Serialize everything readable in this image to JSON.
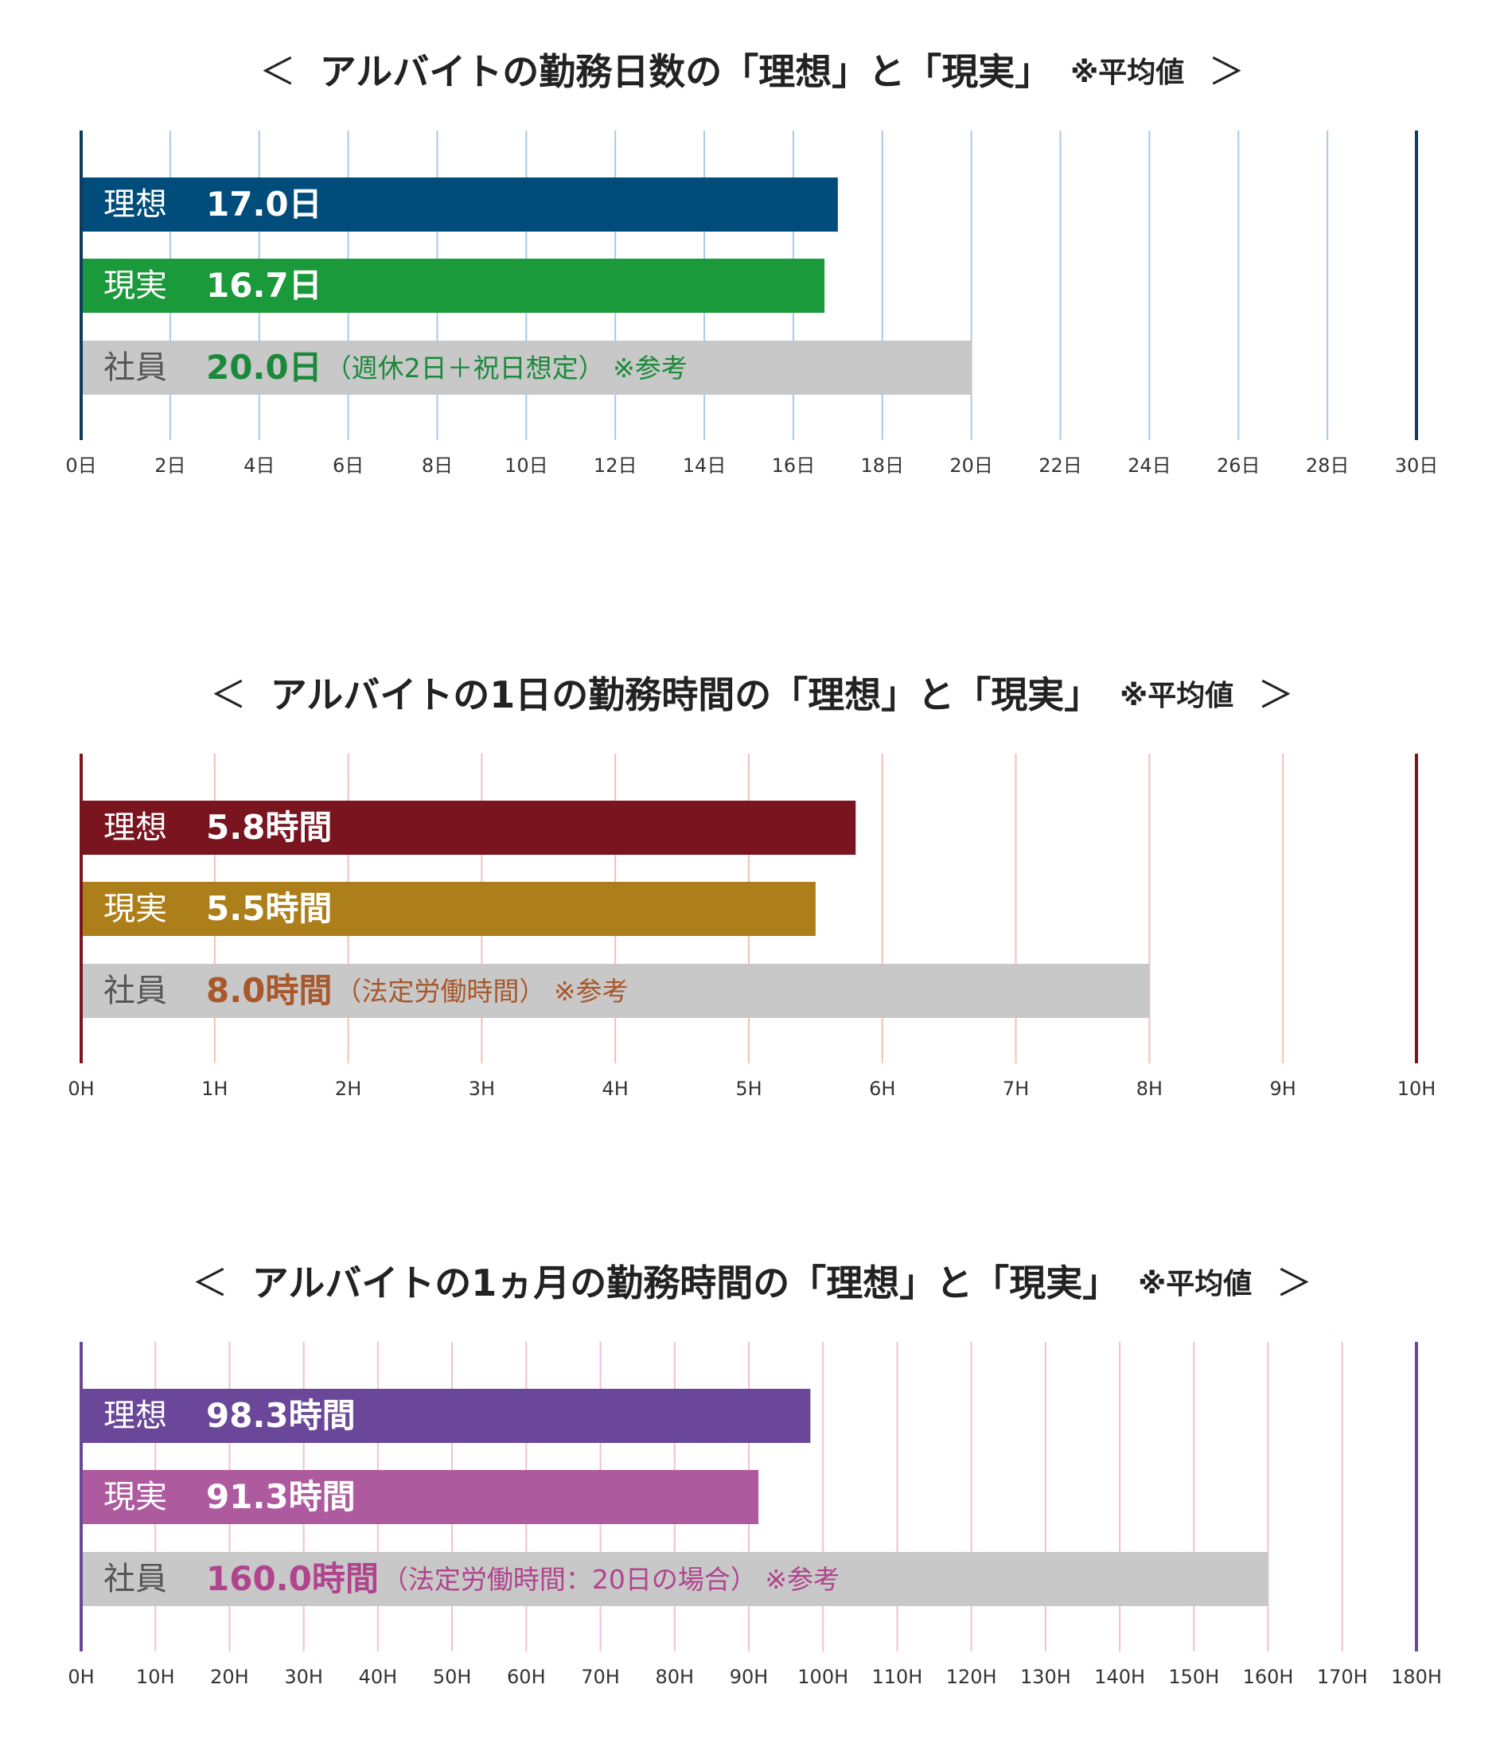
{
  "chart_data": [
    {
      "type": "bar",
      "orientation": "horizontal",
      "title_open": "＜",
      "title": "アルバイトの勤務日数の「理想」と「現実」",
      "title_note": "※平均値",
      "title_close": "＞",
      "categories": [
        "理想",
        "現実",
        "社員"
      ],
      "values": [
        17.0,
        16.7,
        20.0
      ],
      "value_labels": [
        "17.0日",
        "16.7日",
        "20.0日"
      ],
      "notes": [
        null,
        null,
        "（週休2日＋祝日想定） ※参考"
      ],
      "colors": [
        "#004c7a",
        "#1a9a3a",
        "#c8c8c8"
      ],
      "label_colors": [
        "#ffffff",
        "#ffffff",
        "#1a8a3a"
      ],
      "category_colors": [
        "#ffffff",
        "#ffffff",
        "#555555"
      ],
      "grid_color": "#a9c8e8",
      "axis_color": "#0d3c5e",
      "xlim": [
        0,
        30
      ],
      "xticks": [
        {
          "value": 0,
          "label": "0日"
        },
        {
          "value": 2,
          "label": "2日"
        },
        {
          "value": 4,
          "label": "4日"
        },
        {
          "value": 6,
          "label": "6日"
        },
        {
          "value": 8,
          "label": "8日"
        },
        {
          "value": 10,
          "label": "10日"
        },
        {
          "value": 12,
          "label": "12日"
        },
        {
          "value": 14,
          "label": "14日"
        },
        {
          "value": 16,
          "label": "16日"
        },
        {
          "value": 18,
          "label": "18日"
        },
        {
          "value": 20,
          "label": "20日"
        },
        {
          "value": 22,
          "label": "22日"
        },
        {
          "value": 24,
          "label": "24日"
        },
        {
          "value": 26,
          "label": "26日"
        },
        {
          "value": 28,
          "label": "28日"
        },
        {
          "value": 30,
          "label": "30日"
        }
      ],
      "grid": true
    },
    {
      "type": "bar",
      "orientation": "horizontal",
      "title_open": "＜",
      "title": "アルバイトの1日の勤務時間の「理想」と「現実」",
      "title_note": "※平均値",
      "title_close": "＞",
      "categories": [
        "理想",
        "現実",
        "社員"
      ],
      "values": [
        5.8,
        5.5,
        8.0
      ],
      "value_labels": [
        "5.8時間",
        "5.5時間",
        "8.0時間"
      ],
      "notes": [
        null,
        null,
        "（法定労働時間） ※参考"
      ],
      "colors": [
        "#7a1520",
        "#ad7f1a",
        "#c8c8c8"
      ],
      "label_colors": [
        "#ffffff",
        "#ffffff",
        "#a8582a"
      ],
      "category_colors": [
        "#ffffff",
        "#ffffff",
        "#555555"
      ],
      "grid_color": "#f0c0b8",
      "axis_color": "#7a1520",
      "xlim": [
        0,
        10
      ],
      "xticks": [
        {
          "value": 0,
          "label": "0H"
        },
        {
          "value": 1,
          "label": "1H"
        },
        {
          "value": 2,
          "label": "2H"
        },
        {
          "value": 3,
          "label": "3H"
        },
        {
          "value": 4,
          "label": "4H"
        },
        {
          "value": 5,
          "label": "5H"
        },
        {
          "value": 6,
          "label": "6H"
        },
        {
          "value": 7,
          "label": "7H"
        },
        {
          "value": 8,
          "label": "8H"
        },
        {
          "value": 9,
          "label": "9H"
        },
        {
          "value": 10,
          "label": "10H"
        }
      ],
      "grid": true
    },
    {
      "type": "bar",
      "orientation": "horizontal",
      "title_open": "＜",
      "title": "アルバイトの1ヵ月の勤務時間の「理想」と「現実」",
      "title_note": "※平均値",
      "title_close": "＞",
      "categories": [
        "理想",
        "現実",
        "社員"
      ],
      "values": [
        98.3,
        91.3,
        160.0
      ],
      "value_labels": [
        "98.3時間",
        "91.3時間",
        "160.0時間"
      ],
      "notes": [
        null,
        null,
        "（法定労働時間：20日の場合） ※参考"
      ],
      "colors": [
        "#6a4799",
        "#ad5a9e",
        "#c8c8c8"
      ],
      "label_colors": [
        "#ffffff",
        "#ffffff",
        "#b0448e"
      ],
      "category_colors": [
        "#ffffff",
        "#ffffff",
        "#555555"
      ],
      "grid_color": "#f0c0d8",
      "axis_color": "#6a4799",
      "xlim": [
        0,
        180
      ],
      "xticks": [
        {
          "value": 0,
          "label": "0H"
        },
        {
          "value": 10,
          "label": "10H"
        },
        {
          "value": 20,
          "label": "20H"
        },
        {
          "value": 30,
          "label": "30H"
        },
        {
          "value": 40,
          "label": "40H"
        },
        {
          "value": 50,
          "label": "50H"
        },
        {
          "value": 60,
          "label": "60H"
        },
        {
          "value": 70,
          "label": "70H"
        },
        {
          "value": 80,
          "label": "80H"
        },
        {
          "value": 90,
          "label": "90H"
        },
        {
          "value": 100,
          "label": "100H"
        },
        {
          "value": 110,
          "label": "110H"
        },
        {
          "value": 120,
          "label": "120H"
        },
        {
          "value": 130,
          "label": "130H"
        },
        {
          "value": 140,
          "label": "140H"
        },
        {
          "value": 150,
          "label": "150H"
        },
        {
          "value": 160,
          "label": "160H"
        },
        {
          "value": 170,
          "label": "170H"
        },
        {
          "value": 180,
          "label": "180H"
        }
      ],
      "grid": true
    }
  ]
}
